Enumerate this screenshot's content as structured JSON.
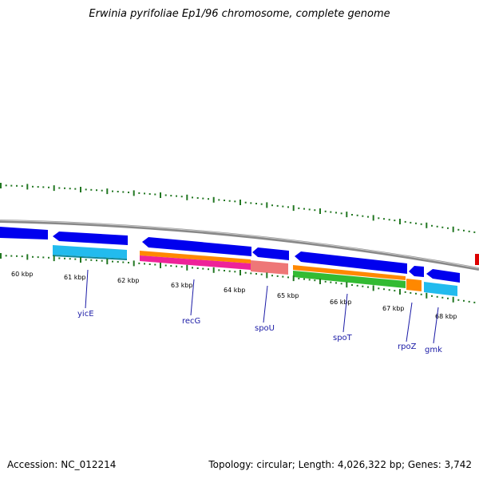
{
  "title": "Erwinia pyrifoliae Ep1/96 chromosome, complete genome",
  "footer": {
    "accession": "Accession: NC_012214",
    "summary": "Topology: circular; Length: 4,026,322 bp; Genes: 3,742"
  },
  "ticks": [
    "60 kbp",
    "61 kbp",
    "62 kbp",
    "63 kbp",
    "64 kbp",
    "65 kbp",
    "66 kbp",
    "67 kbp",
    "68 kbp"
  ],
  "genes": [
    "yicE",
    "recG",
    "spoU",
    "spoT",
    "rpoZ",
    "gmk"
  ],
  "colors": {
    "cds": "#0000ee",
    "gene_light": "#22bbee",
    "orange": "#ff8800",
    "magenta": "#ee2299",
    "salmon": "#ee7777",
    "green": "#33bb33",
    "backbone": "#888888",
    "tick": "#227722",
    "label": "#1a1aa6",
    "edge_marker": "#dd0000"
  }
}
